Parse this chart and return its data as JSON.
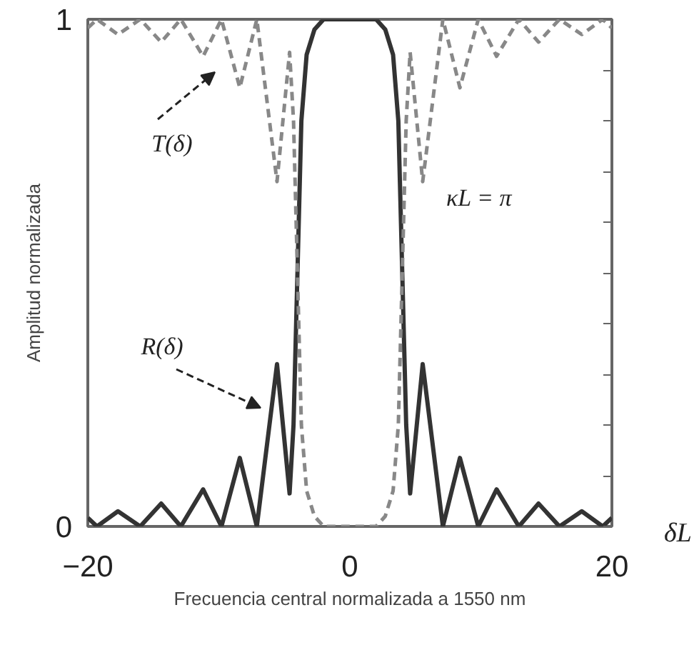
{
  "chart_data": {
    "type": "line",
    "xlabel": "Frecuencia central normalizada a 1550 nm",
    "ylabel": "Amplitud normalizada",
    "xlim": [
      -20,
      20
    ],
    "xticks": [
      -20,
      0,
      20
    ],
    "ylim": [
      0,
      1
    ],
    "yticks": [
      0,
      {
        "value": 0.1,
        "label": null
      },
      {
        "value": 0.2,
        "label": null
      },
      {
        "value": 0.3,
        "label": null
      },
      {
        "value": 0.4,
        "label": null
      },
      {
        "value": 0.5,
        "label": null
      },
      {
        "value": 0.6,
        "label": null
      },
      {
        "value": 0.7,
        "label": null
      },
      {
        "value": 0.8,
        "label": null
      },
      {
        "value": 0.9,
        "label": null
      },
      1
    ],
    "x": [
      -20,
      -19.3,
      -17.7,
      -16.0,
      -14.4,
      -12.9,
      -11.2,
      -9.8,
      -8.4,
      -7.1,
      -5.56,
      -4.6,
      -4.3,
      -4.0,
      -3.7,
      -3.3,
      -2.7,
      -2.0,
      0,
      2.0,
      2.7,
      3.3,
      3.7,
      4.0,
      4.3,
      4.6,
      5.56,
      7.1,
      8.4,
      9.8,
      11.2,
      12.9,
      14.4,
      16.0,
      17.7,
      19.3,
      20
    ],
    "series": [
      {
        "color": "#333333",
        "line_style": "solid",
        "values": [
          0.017,
          0,
          0.03,
          0,
          0.045,
          0,
          0.073,
          0,
          0.135,
          0,
          0.32,
          0.065,
          0.2,
          0.5,
          0.8,
          0.93,
          0.98,
          1.0,
          1.0,
          1.0,
          0.98,
          0.93,
          0.8,
          0.5,
          0.2,
          0.065,
          0.32,
          0,
          0.135,
          0,
          0.073,
          0,
          0.045,
          0,
          0.03,
          0,
          0.017
        ]
      },
      {
        "color": "#888888",
        "line_style": "dashed",
        "values": [
          0.983,
          1,
          0.97,
          1,
          0.955,
          1,
          0.927,
          1,
          0.865,
          1,
          0.68,
          0.935,
          0.8,
          0.5,
          0.2,
          0.07,
          0.02,
          0,
          0,
          0,
          0.02,
          0.07,
          0.2,
          0.5,
          0.8,
          0.935,
          0.68,
          1,
          0.865,
          1,
          0.927,
          1,
          0.955,
          1,
          0.97,
          1,
          0.983
        ]
      }
    ],
    "annotations": [
      "T(δ)",
      "R(δ)",
      "κL = π",
      "δL"
    ],
    "grid": false,
    "marker": "none"
  }
}
